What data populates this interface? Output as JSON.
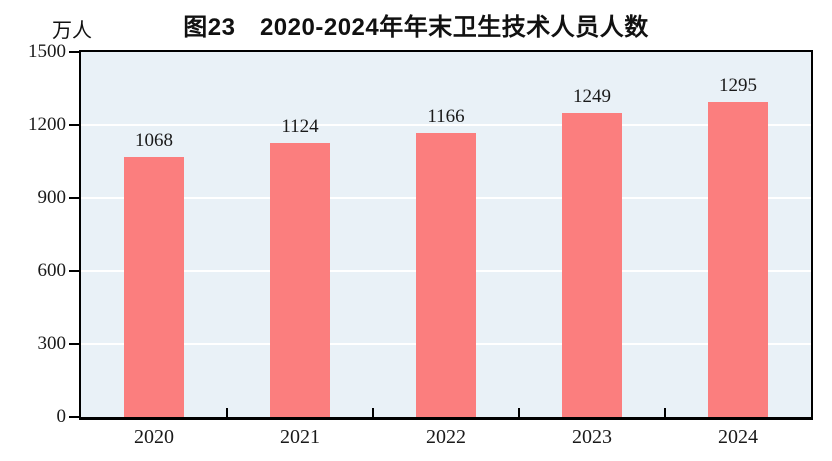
{
  "chart": {
    "title": "图23　2020-2024年年末卫生技术人员人数",
    "unit_label": "万人"
  },
  "chart_data": {
    "type": "bar",
    "title": "图23　2020-2024年年末卫生技术人员人数",
    "categories": [
      "2020",
      "2021",
      "2022",
      "2023",
      "2024"
    ],
    "values": [
      1068,
      1124,
      1166,
      1249,
      1295
    ],
    "data_labels": [
      "1068",
      "1124",
      "1166",
      "1249",
      "1295"
    ],
    "xlabel": "",
    "ylabel": "万人",
    "ylim": [
      0,
      1500
    ],
    "yticks": [
      0,
      300,
      600,
      900,
      1200,
      1500
    ],
    "grid": true,
    "legend_position": "none",
    "colors": {
      "bar_fill": "#FB7E7E",
      "plot_background": "#E9F1F7",
      "gridline": "#FFFFFF",
      "axis_border": "#000000",
      "text": "#1a1a1a",
      "page_background": "#FFFFFF"
    }
  }
}
